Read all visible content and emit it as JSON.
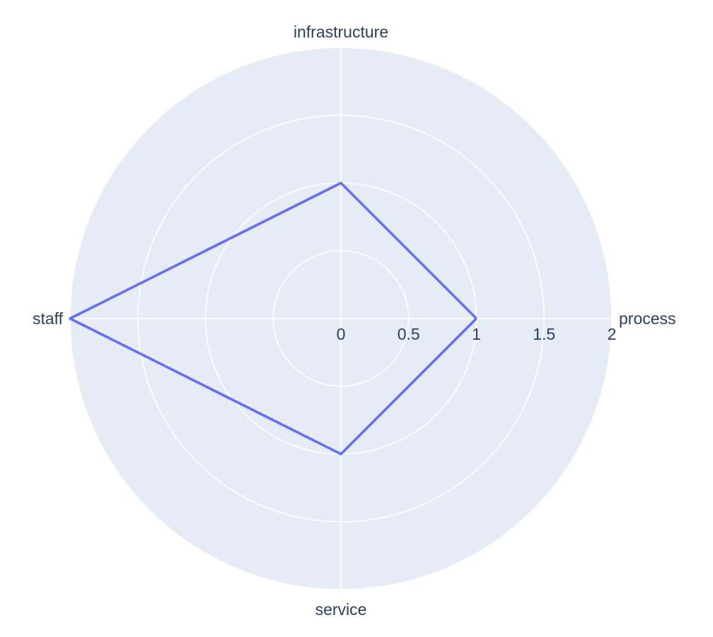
{
  "chart_data": {
    "type": "radar",
    "categories": [
      "process",
      "infrastructure",
      "staff",
      "service"
    ],
    "series": [
      {
        "values": [
          1,
          1,
          2,
          1
        ],
        "color": "#636efa"
      }
    ],
    "radial_range": [
      0,
      2
    ],
    "radial_ticks": [
      0,
      0.5,
      1,
      1.5,
      2
    ],
    "radial_tick_labels": [
      "0",
      "0.5",
      "1",
      "1.5",
      "2"
    ],
    "angular_rotation_deg": 0,
    "angular_direction": "counterclockwise",
    "grid": true,
    "background_color": "#e5ecf6",
    "gridline_color": "#ffffff",
    "font_color": "#2a3f5f"
  }
}
